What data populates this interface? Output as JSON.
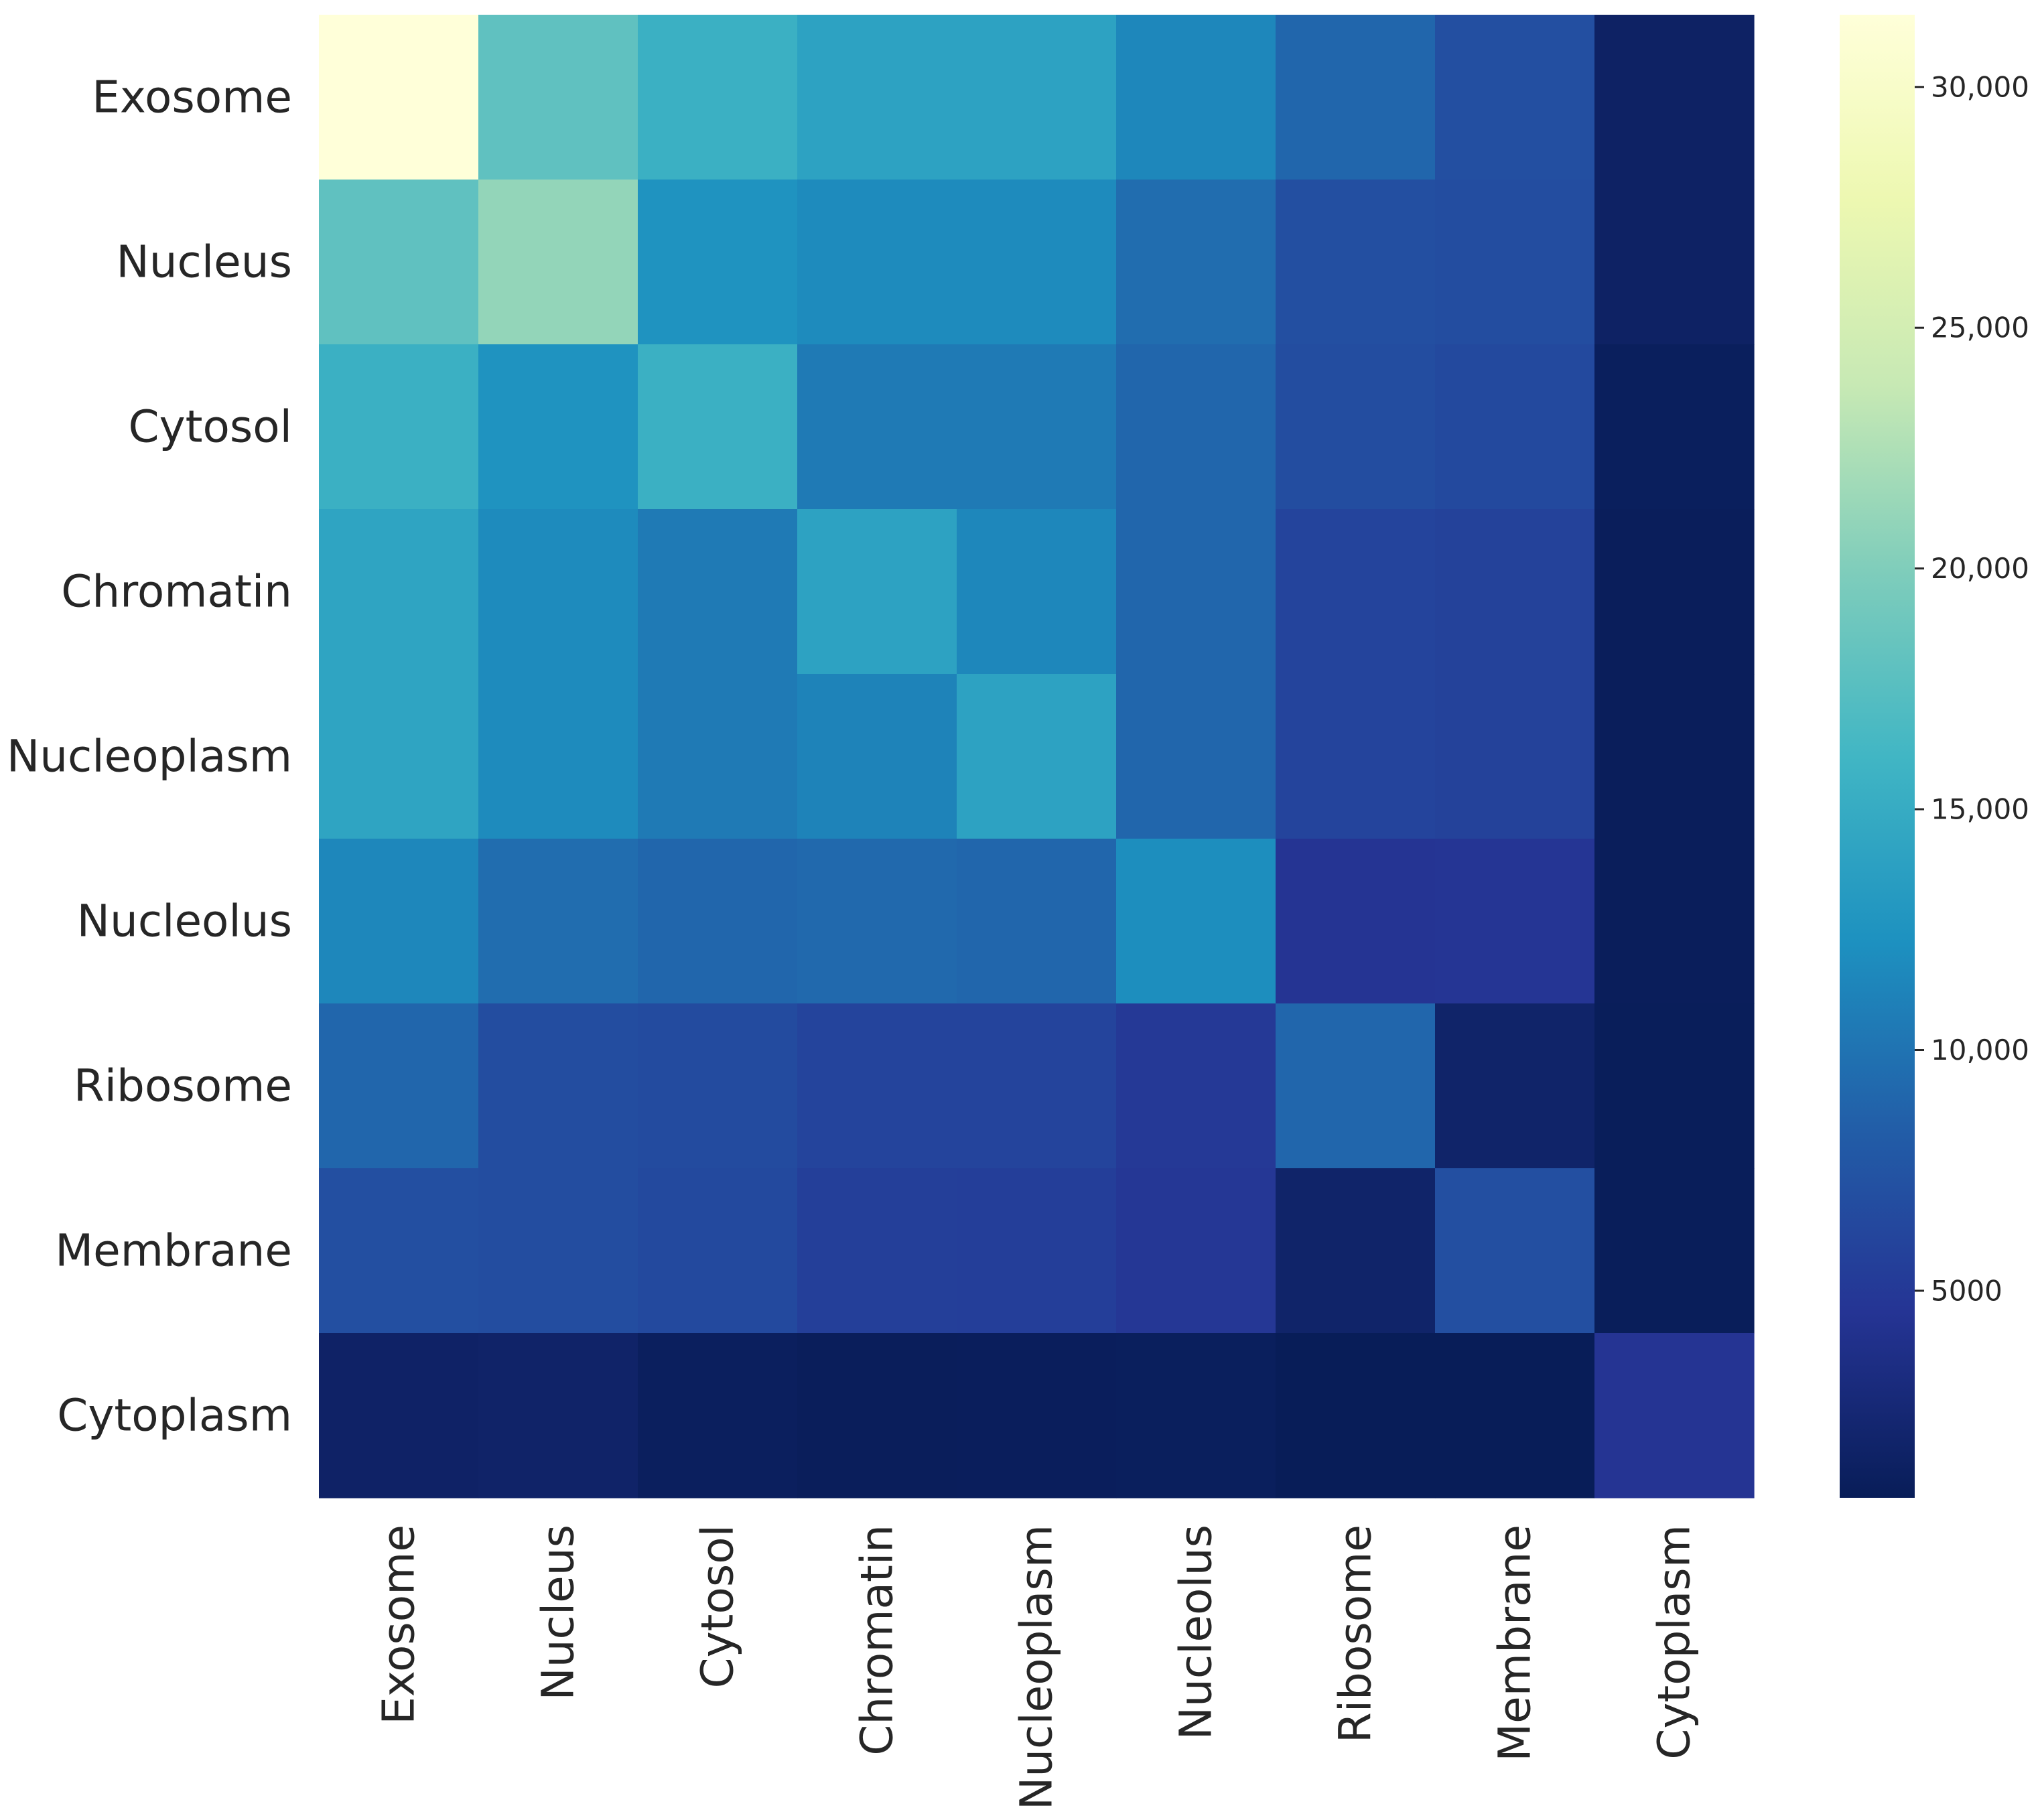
{
  "chart_data": {
    "type": "heatmap",
    "title": "",
    "xlabel": "",
    "ylabel": "",
    "row_labels": [
      "Exosome",
      "Nucleus",
      "Cytosol",
      "Chromatin",
      "Nucleoplasm",
      "Nucleolus",
      "Ribosome",
      "Membrane",
      "Cytoplasm"
    ],
    "col_labels": [
      "Exosome",
      "Nucleus",
      "Cytosol",
      "Chromatin",
      "Nucleoplasm",
      "Nucleolus",
      "Ribosome",
      "Membrane",
      "Cytoplasm"
    ],
    "values": [
      [
        31500,
        18000,
        15500,
        14000,
        14000,
        11500,
        9000,
        7000,
        1500
      ],
      [
        18000,
        21000,
        12500,
        11800,
        11800,
        9500,
        7000,
        6800,
        1500
      ],
      [
        15500,
        12500,
        15500,
        10500,
        10500,
        9000,
        6800,
        6500,
        1000
      ],
      [
        14200,
        11800,
        10500,
        14000,
        11500,
        9000,
        6000,
        5800,
        900
      ],
      [
        14200,
        11800,
        10500,
        11200,
        14000,
        9000,
        6000,
        5800,
        900
      ],
      [
        11500,
        9500,
        9000,
        9200,
        9000,
        12000,
        4500,
        4600,
        900
      ],
      [
        9000,
        6800,
        6700,
        6000,
        6000,
        5000,
        9000,
        1800,
        800
      ],
      [
        7000,
        6800,
        6500,
        5600,
        5500,
        4800,
        1800,
        7000,
        800
      ],
      [
        1600,
        1700,
        1100,
        900,
        950,
        1000,
        700,
        700,
        4500
      ]
    ],
    "colormap": "YlGnBu",
    "vmin": 700,
    "vmax": 31500,
    "colorbar_ticks": [
      {
        "value": 5000,
        "label": "5000"
      },
      {
        "value": 10000,
        "label": "10,000"
      },
      {
        "value": 15000,
        "label": "15,000"
      },
      {
        "value": 20000,
        "label": "20,000"
      },
      {
        "value": 25000,
        "label": "25,000"
      },
      {
        "value": 30000,
        "label": "30,000"
      }
    ],
    "colormap_stops": [
      "#ffffd9",
      "#edf8b1",
      "#c7e9b4",
      "#7fcdbb",
      "#41b6c4",
      "#1d91c0",
      "#225ea8",
      "#253494",
      "#081d58"
    ]
  }
}
